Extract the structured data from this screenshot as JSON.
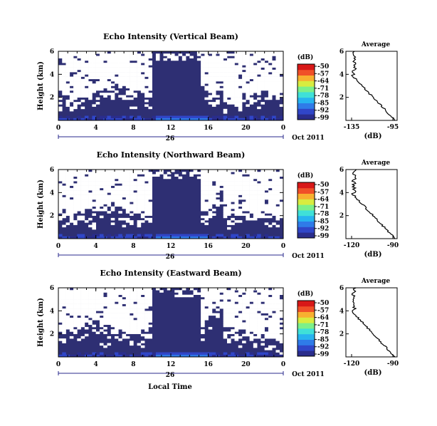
{
  "chart_data": [
    {
      "type": "heatmap",
      "title": "Echo Intensity (Vertical Beam)",
      "ylabel": "Height (km)",
      "xticks": [
        "0",
        "4",
        "8",
        "12",
        "16",
        "20",
        "0"
      ],
      "yticks": [
        "2",
        "4",
        "6"
      ],
      "day_label": "26",
      "date_label": "Oct 2011",
      "colorbar": {
        "unit": "(dB)",
        "ticks": [
          "-50",
          "-57",
          "-64",
          "-71",
          "-78",
          "-85",
          "-92",
          "-99"
        ]
      },
      "average": {
        "title": "Average",
        "xlabel": "(dB)",
        "xticks": [
          "-135",
          "-95"
        ],
        "yticks": [
          "2",
          "4",
          "6"
        ]
      }
    },
    {
      "type": "heatmap",
      "title": "Echo Intensity (Northward Beam)",
      "ylabel": "Height (km)",
      "xticks": [
        "0",
        "4",
        "8",
        "12",
        "16",
        "20",
        "0"
      ],
      "yticks": [
        "2",
        "4",
        "6"
      ],
      "day_label": "26",
      "date_label": "Oct 2011",
      "colorbar": {
        "unit": "(dB)",
        "ticks": [
          "-50",
          "-57",
          "-64",
          "-71",
          "-78",
          "-85",
          "-92",
          "-99"
        ]
      },
      "average": {
        "title": "Average",
        "xlabel": "(dB)",
        "xticks": [
          "-120",
          "-90"
        ],
        "yticks": [
          "2",
          "4",
          "6"
        ]
      }
    },
    {
      "type": "heatmap",
      "title": "Echo Intensity (Eastward Beam)",
      "ylabel": "Height (km)",
      "xticks": [
        "0",
        "4",
        "8",
        "12",
        "16",
        "20",
        "0"
      ],
      "yticks": [
        "2",
        "4",
        "6"
      ],
      "day_label": "26",
      "date_label": "Oct 2011",
      "xlabel": "Local Time",
      "colorbar": {
        "unit": "(dB)",
        "ticks": [
          "-50",
          "-57",
          "-64",
          "-71",
          "-78",
          "-85",
          "-92",
          "-99"
        ]
      },
      "average": {
        "title": "Average",
        "xlabel": "(dB)",
        "xticks": [
          "-120",
          "-90"
        ],
        "yticks": [
          "2",
          "4",
          "6"
        ]
      }
    }
  ],
  "colors": {
    "background_echo": "#2e2f73",
    "missing": "#ffffff",
    "colormap": [
      "#2a2d8c",
      "#3046c8",
      "#2f7be8",
      "#27b3f0",
      "#3fe0d8",
      "#7cf08a",
      "#d8ec40",
      "#f8b030",
      "#f05028",
      "#d81818"
    ]
  }
}
